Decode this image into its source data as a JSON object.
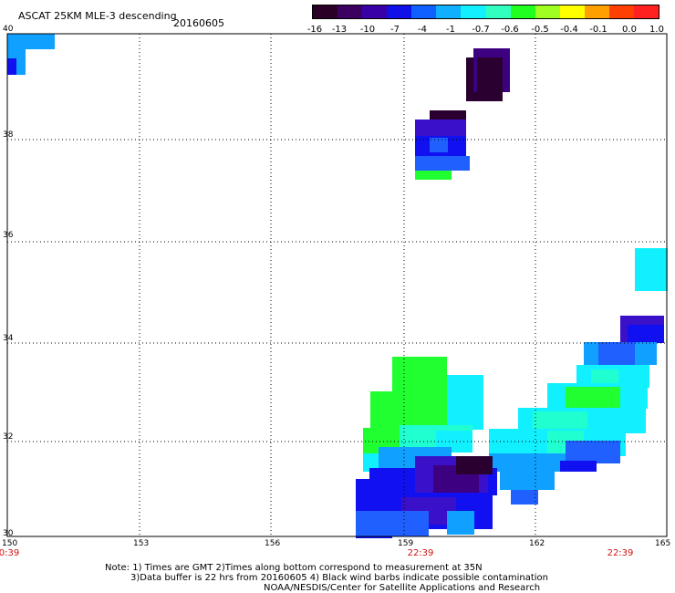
{
  "header": {
    "title": "ASCAT 25KM MLE-3 descending",
    "date": "20160605"
  },
  "colorbar": {
    "labels": [
      "-16",
      "-13",
      "-10",
      "-7",
      "-4",
      "-1",
      "-0.7",
      "-0.6",
      "-0.5",
      "-0.4",
      "-0.1",
      "0.0",
      "1.0"
    ],
    "colors": [
      "#2a0026",
      "#3c0060",
      "#3a00a8",
      "#1010e8",
      "#1060ff",
      "#10b0ff",
      "#10f0ff",
      "#30ffc0",
      "#20ff20",
      "#a0ff20",
      "#ffff00",
      "#ffa000",
      "#ff4000",
      "#ff2020"
    ]
  },
  "axes": {
    "lat_labels": [
      "40",
      "38",
      "36",
      "34",
      "32",
      "30"
    ],
    "lon_labels": [
      "150",
      "153",
      "156",
      "159",
      "162",
      "165"
    ],
    "time_labels": [
      "0:39",
      "22:39",
      "22:39"
    ]
  },
  "map_colors": {
    "dark_purple": "#2a0030",
    "purple": "#3c0080",
    "violet": "#3a10c8",
    "blue": "#1010f0",
    "mid_blue": "#2060ff",
    "sky": "#10a0ff",
    "cyan": "#10f0ff",
    "aqua": "#20ffd0",
    "green": "#20ff30"
  },
  "notes": {
    "line1": "Note: 1) Times are GMT 2)Times along bottom correspond to measurement at 35N",
    "line2": "3)Data buffer is 22 hrs from 20160605 4) Black wind barbs indicate possible contamination",
    "line3": "NOAA/NESDIS/Center for Satellite Applications and Research"
  }
}
